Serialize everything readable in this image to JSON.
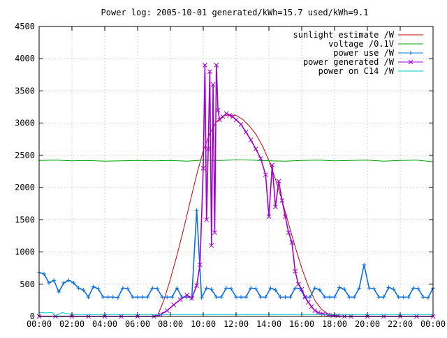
{
  "chart_data": {
    "type": "line",
    "title": "Power log: 2005-10-01 generated/kWh=15.7 used/kWh=9.1",
    "xlabel": "",
    "ylabel": "",
    "xlim": [
      0,
      24
    ],
    "ylim": [
      0,
      4500
    ],
    "grid": true,
    "legend_position": "top-right",
    "x_ticks": [
      "00:00",
      "02:00",
      "04:00",
      "06:00",
      "08:00",
      "10:00",
      "12:00",
      "14:00",
      "16:00",
      "18:00",
      "20:00",
      "22:00",
      "00:00"
    ],
    "y_ticks": [
      "0",
      "500",
      "1000",
      "1500",
      "2000",
      "2500",
      "3000",
      "3500",
      "4000",
      "4500"
    ],
    "series": [
      {
        "name": "sunlight estimate /W",
        "color": "#cc0000",
        "style": "line",
        "x": [
          7.2,
          7.6,
          8.0,
          8.4,
          8.8,
          9.2,
          9.6,
          10.0,
          10.4,
          10.8,
          11.2,
          11.6,
          12.0,
          12.4,
          12.8,
          13.2,
          13.6,
          14.0,
          14.4,
          14.8,
          15.2,
          15.6,
          16.0,
          16.4,
          16.8,
          17.2,
          17.6,
          18.0,
          18.4
        ],
        "y": [
          0,
          250,
          580,
          950,
          1350,
          1780,
          2200,
          2570,
          2840,
          3020,
          3110,
          3130,
          3120,
          3060,
          2960,
          2830,
          2650,
          2420,
          2130,
          1800,
          1440,
          1080,
          750,
          470,
          250,
          110,
          40,
          10,
          0
        ]
      },
      {
        "name": "voltage /0.1V",
        "color": "#00a000",
        "style": "line",
        "x": [
          0,
          1,
          2,
          3,
          4,
          5,
          6,
          7,
          8,
          9,
          10,
          11,
          12,
          13,
          14,
          15,
          16,
          17,
          18,
          19,
          20,
          21,
          22,
          23,
          24
        ],
        "y": [
          2420,
          2425,
          2415,
          2420,
          2410,
          2415,
          2420,
          2415,
          2420,
          2410,
          2425,
          2420,
          2430,
          2425,
          2415,
          2410,
          2420,
          2425,
          2415,
          2420,
          2425,
          2410,
          2420,
          2425,
          2400
        ]
      },
      {
        "name": "power use /W",
        "color": "#0a70e0",
        "style": "linepoints",
        "x": [
          0.0,
          0.3,
          0.6,
          0.9,
          1.2,
          1.5,
          1.8,
          2.1,
          2.4,
          2.7,
          3.0,
          3.3,
          3.6,
          3.9,
          4.2,
          4.5,
          4.8,
          5.1,
          5.4,
          5.7,
          6.0,
          6.3,
          6.6,
          6.9,
          7.2,
          7.5,
          7.8,
          8.1,
          8.4,
          8.7,
          9.0,
          9.3,
          9.6,
          9.9,
          10.2,
          10.5,
          10.8,
          11.1,
          11.4,
          11.7,
          12.0,
          12.3,
          12.6,
          12.9,
          13.2,
          13.5,
          13.8,
          14.1,
          14.4,
          14.7,
          15.0,
          15.3,
          15.6,
          15.9,
          16.2,
          16.5,
          16.8,
          17.1,
          17.4,
          17.7,
          18.0,
          18.3,
          18.6,
          18.9,
          19.2,
          19.5,
          19.8,
          20.1,
          20.4,
          20.7,
          21.0,
          21.3,
          21.6,
          21.9,
          22.2,
          22.5,
          22.8,
          23.1,
          23.4,
          23.7,
          24.0
        ],
        "y": [
          680,
          660,
          520,
          560,
          380,
          520,
          560,
          520,
          440,
          410,
          300,
          460,
          430,
          300,
          300,
          300,
          290,
          440,
          430,
          300,
          300,
          300,
          300,
          440,
          430,
          300,
          300,
          300,
          440,
          300,
          300,
          290,
          1650,
          290,
          440,
          420,
          300,
          300,
          440,
          430,
          300,
          300,
          300,
          440,
          430,
          300,
          300,
          440,
          410,
          300,
          300,
          300,
          440,
          430,
          300,
          300,
          440,
          410,
          300,
          300,
          300,
          450,
          420,
          300,
          300,
          440,
          800,
          440,
          430,
          300,
          300,
          450,
          420,
          300,
          300,
          300,
          440,
          430,
          300,
          290,
          440
        ]
      },
      {
        "name": "power generated /W",
        "color": "#a000d0",
        "style": "linepoints",
        "x": [
          0,
          1,
          2,
          3,
          4,
          5,
          6,
          7,
          7.4,
          7.8,
          8.2,
          8.6,
          9.0,
          9.3,
          9.6,
          9.8,
          10.0,
          10.1,
          10.2,
          10.3,
          10.4,
          10.5,
          10.6,
          10.7,
          10.8,
          10.9,
          11.0,
          11.2,
          11.4,
          11.6,
          11.8,
          12.0,
          12.3,
          12.6,
          12.9,
          13.2,
          13.5,
          13.8,
          14.0,
          14.2,
          14.4,
          14.6,
          14.8,
          15.0,
          15.2,
          15.4,
          15.6,
          15.8,
          16.0,
          16.2,
          16.4,
          16.6,
          16.8,
          17.0,
          17.3,
          17.6,
          17.9,
          18.2,
          18.6,
          19.0,
          20,
          21,
          22,
          23,
          24
        ],
        "y": [
          0,
          0,
          0,
          0,
          0,
          0,
          0,
          0,
          30,
          90,
          180,
          260,
          330,
          280,
          480,
          800,
          2300,
          3900,
          1500,
          2600,
          3800,
          1100,
          3600,
          1300,
          3900,
          3200,
          3050,
          3100,
          3150,
          3120,
          3100,
          3050,
          2980,
          2860,
          2740,
          2600,
          2450,
          2200,
          1550,
          2350,
          1700,
          2100,
          1800,
          1550,
          1300,
          1150,
          700,
          500,
          420,
          300,
          220,
          150,
          90,
          60,
          40,
          25,
          15,
          10,
          0,
          0,
          0,
          0,
          0,
          0,
          0
        ]
      },
      {
        "name": "power on C14 /W",
        "color": "#00c8c8",
        "style": "line",
        "x": [
          0,
          0.4,
          0.8,
          1.0,
          1.4,
          2,
          4,
          6,
          8,
          10,
          12,
          14,
          16,
          18,
          20,
          22,
          24
        ],
        "y": [
          60,
          55,
          60,
          10,
          60,
          30,
          30,
          30,
          30,
          30,
          30,
          30,
          30,
          30,
          30,
          30,
          30
        ]
      }
    ]
  }
}
